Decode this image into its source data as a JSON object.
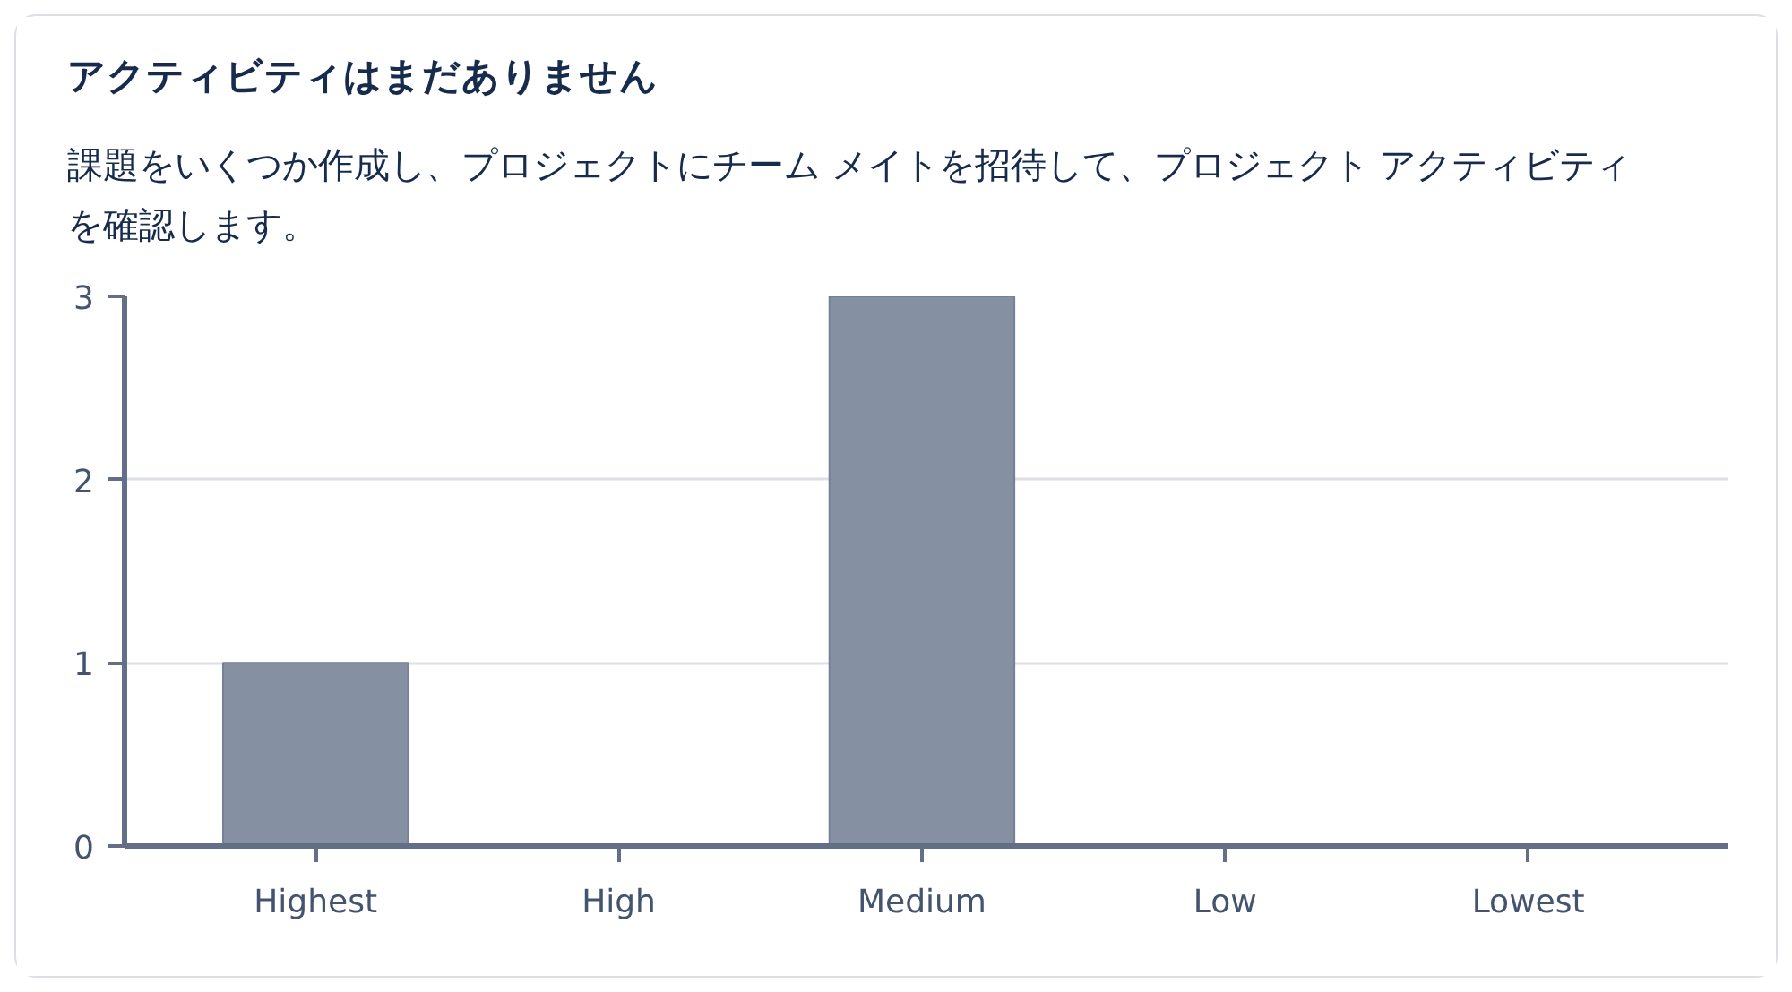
{
  "chart_data": {
    "type": "bar",
    "title": "アクティビティはまだありません",
    "subtitle": "課題をいくつか作成し、プロジェクトにチーム メイトを招待して、プロジェクト アクティビティを確認します。",
    "categories": [
      "Highest",
      "High",
      "Medium",
      "Low",
      "Lowest"
    ],
    "values": [
      1,
      0,
      3,
      0,
      0
    ],
    "color": "#8590a2",
    "ylim": [
      0,
      3
    ],
    "yticks": [
      0,
      1,
      2,
      3
    ],
    "grid": "y"
  }
}
